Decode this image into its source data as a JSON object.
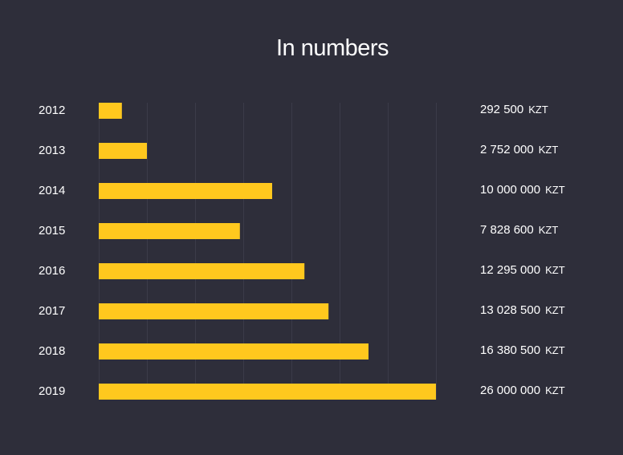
{
  "chart_data": {
    "type": "bar",
    "orientation": "horizontal",
    "title": "In numbers",
    "categories": [
      "2012",
      "2013",
      "2014",
      "2015",
      "2016",
      "2017",
      "2018",
      "2019"
    ],
    "values": [
      292500,
      2752000,
      10000000,
      7828600,
      12295000,
      13028500,
      16380500,
      26000000
    ],
    "value_labels": [
      "292 500",
      "2 752 000",
      "10 000 000",
      "7 828 600",
      "12 295 000",
      "13 028 500",
      "16 380 500",
      "26 000 000"
    ],
    "currency": "KZT",
    "bar_grid_units": [
      0.48,
      1.0,
      3.6,
      2.93,
      4.27,
      4.77,
      5.6,
      7.0
    ],
    "grid_divisions": 7,
    "grid": true,
    "colors": {
      "bar": "#ffc81e",
      "background": "#2e2e3a",
      "grid": "#3b3b49"
    }
  }
}
